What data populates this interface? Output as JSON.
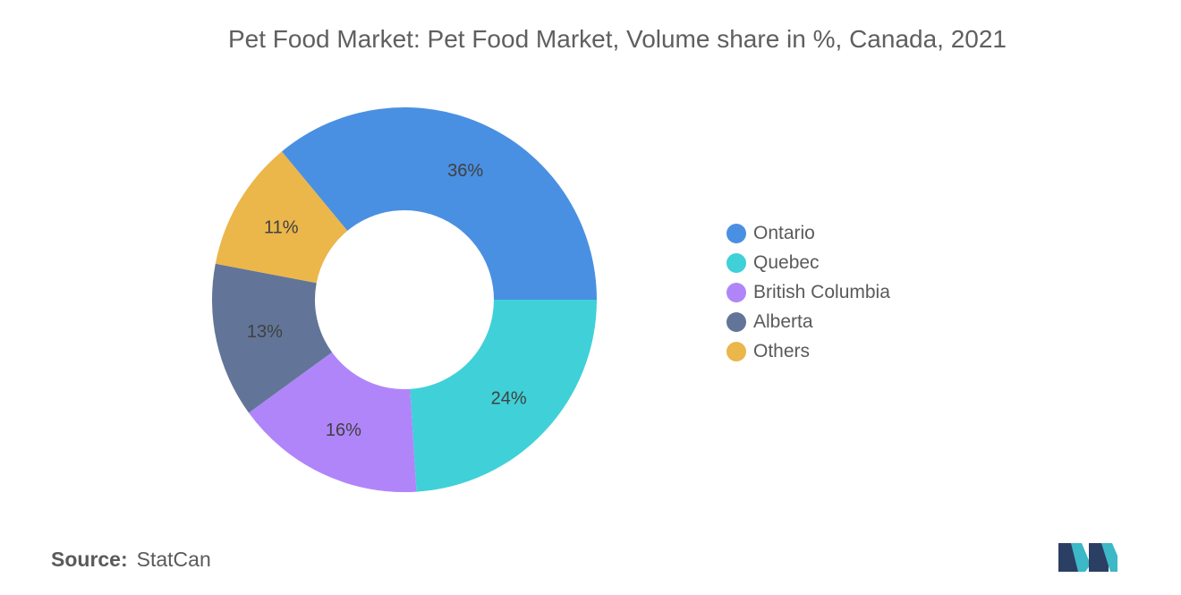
{
  "chart_data": {
    "type": "pie",
    "title": "Pet Food Market: Pet Food Market, Volume share in %, Canada, 2021",
    "categories": [
      "Ontario",
      "Quebec",
      "British Columbia",
      "Alberta",
      "Others"
    ],
    "values": [
      36,
      24,
      16,
      13,
      11
    ],
    "value_labels": [
      "36%",
      "24%",
      "16%",
      "13%",
      "11%"
    ],
    "colors": [
      "#4a90e2",
      "#40d0d8",
      "#b085f9",
      "#627598",
      "#ebb64a"
    ],
    "donut": true,
    "legend_position": "right"
  },
  "source": {
    "label": "Source:",
    "value": "StatCan"
  },
  "logo": {
    "icon": "mordor-intelligence-logo",
    "colors": [
      "#2b3e63",
      "#3cb8c6"
    ]
  }
}
